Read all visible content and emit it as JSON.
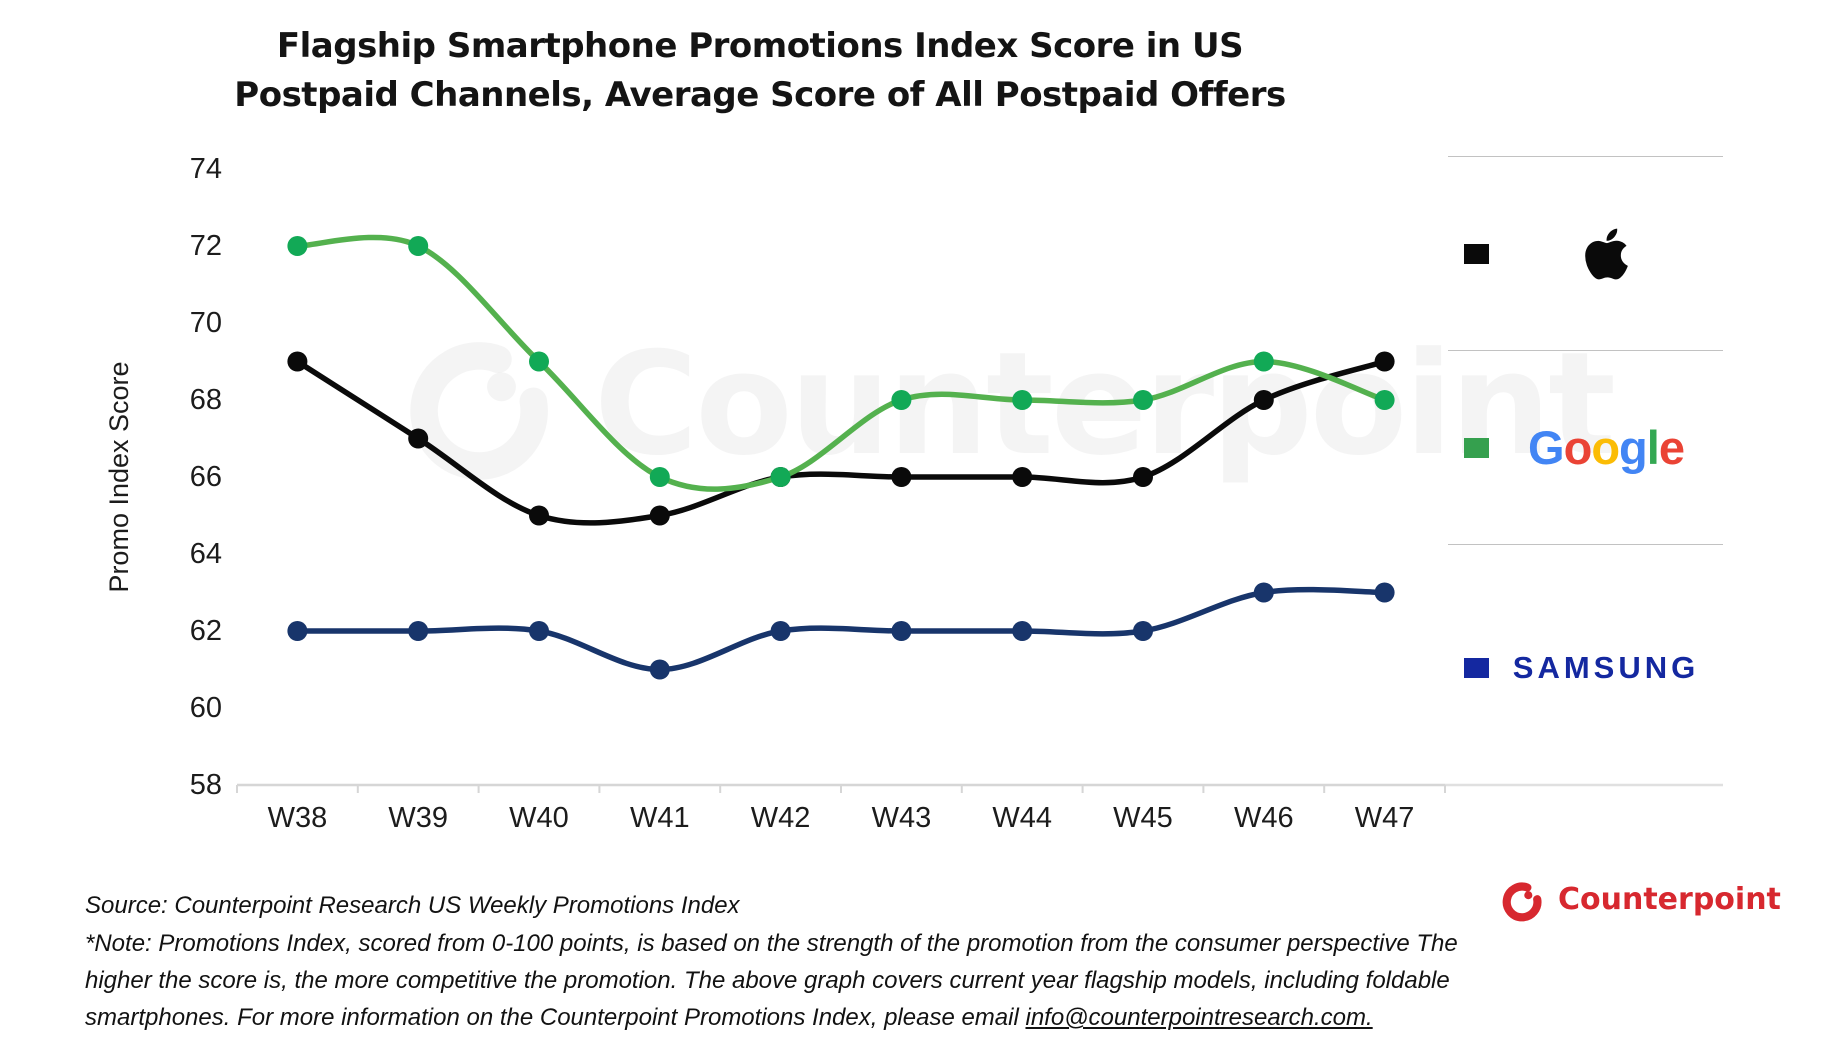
{
  "title": {
    "line1": "Flagship Smartphone Promotions Index Score in US",
    "line2": "Postpaid Channels, Average Score of All Postpaid Offers"
  },
  "chart_data": {
    "type": "line",
    "title": "Flagship Smartphone Promotions Index Score in US Postpaid Channels, Average Score of All Postpaid Offers",
    "categories": [
      "W38",
      "W39",
      "W40",
      "W41",
      "W42",
      "W43",
      "W44",
      "W45",
      "W46",
      "W47"
    ],
    "series": [
      {
        "name": "Apple",
        "values": [
          69,
          67,
          65,
          65,
          66,
          66,
          66,
          66,
          68,
          69
        ],
        "line_color": "#0a0a0a",
        "marker_color": "#0a0a0a"
      },
      {
        "name": "Google",
        "values": [
          72,
          72,
          69,
          66,
          66,
          68,
          68,
          68,
          69,
          68
        ],
        "line_color": "#54B14E",
        "marker_color": "#12A956"
      },
      {
        "name": "Samsung",
        "values": [
          62,
          62,
          62,
          61,
          62,
          62,
          62,
          62,
          63,
          63
        ],
        "line_color": "#18356B",
        "marker_color": "#18356B"
      }
    ],
    "xlabel": "",
    "ylabel": "Promo Index Score",
    "ylim": [
      58,
      74
    ],
    "ytick_step": 2,
    "grid": false,
    "legend_position": "right",
    "axis_color": "#d6d6d6",
    "label_color": "#1c1c1c"
  },
  "legend": {
    "items": [
      {
        "brand": "Apple",
        "swatch_color": "#0a0a0a"
      },
      {
        "brand": "Google",
        "swatch_color": "#35A04E"
      },
      {
        "brand": "Samsung",
        "swatch_color": "#1428A0",
        "wordmark": "SAMSUNG",
        "wordmark_color": "#1428A0"
      }
    ],
    "google_letters": [
      {
        "ch": "G",
        "color": "#4285F4"
      },
      {
        "ch": "o",
        "color": "#EA4335"
      },
      {
        "ch": "o",
        "color": "#FBBC05"
      },
      {
        "ch": "g",
        "color": "#4285F4"
      },
      {
        "ch": "l",
        "color": "#34A853"
      },
      {
        "ch": "e",
        "color": "#EA4335"
      }
    ]
  },
  "watermark": {
    "text": "Counterpoint"
  },
  "footer": {
    "source": "Source: Counterpoint Research US Weekly Promotions Index",
    "note_lines": [
      "*Note: Promotions Index, scored from 0-100 points, is based on the strength of the promotion from the consumer perspective The",
      "higher the score is, the more competitive the promotion. The above graph covers current year flagship models, including foldable",
      "smartphones. For more information on the Counterpoint Promotions Index, please email "
    ],
    "email": "info@counterpointresearch.com.",
    "brand": "Counterpoint",
    "brand_color": "#D7282F"
  }
}
